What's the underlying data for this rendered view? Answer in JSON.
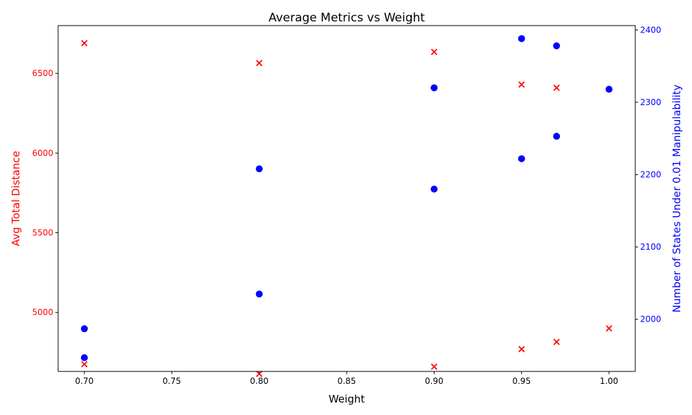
{
  "chart_data": {
    "type": "scatter",
    "title": "Average Metrics vs Weight",
    "xlabel": "Weight",
    "ylabel": "Avg Total Distance",
    "ylabel_right": "Number of States Under 0.01 Manipulability",
    "xlim": [
      0.685,
      1.015
    ],
    "ylim": [
      4630,
      6800
    ],
    "ylim_right": [
      1928,
      2406
    ],
    "x_ticks": [
      "0.70",
      "0.75",
      "0.80",
      "0.85",
      "0.90",
      "0.95",
      "1.00"
    ],
    "y_ticks": [
      "5000",
      "5500",
      "6000",
      "6500"
    ],
    "y_right_ticks": [
      "2000",
      "2100",
      "2200",
      "2300",
      "2400"
    ],
    "grid": false,
    "colors": {
      "left": "#ff0000",
      "right": "#0000ff"
    },
    "series": [
      {
        "axis": "left",
        "marker": "x",
        "color": "#ff0000",
        "points": [
          {
            "x": 0.7,
            "y": 6690
          },
          {
            "x": 0.7,
            "y": 4675
          },
          {
            "x": 0.8,
            "y": 6565
          },
          {
            "x": 0.8,
            "y": 4615
          },
          {
            "x": 0.9,
            "y": 6635
          },
          {
            "x": 0.9,
            "y": 4660
          },
          {
            "x": 0.95,
            "y": 6430
          },
          {
            "x": 0.95,
            "y": 4770
          },
          {
            "x": 0.97,
            "y": 6410
          },
          {
            "x": 0.97,
            "y": 4815
          },
          {
            "x": 1.0,
            "y": 4900
          }
        ]
      },
      {
        "axis": "right",
        "marker": "o",
        "color": "#0000ff",
        "points": [
          {
            "x": 0.7,
            "y": 1987
          },
          {
            "x": 0.7,
            "y": 1947
          },
          {
            "x": 0.8,
            "y": 2208
          },
          {
            "x": 0.8,
            "y": 2035
          },
          {
            "x": 0.9,
            "y": 2320
          },
          {
            "x": 0.9,
            "y": 2180
          },
          {
            "x": 0.95,
            "y": 2388
          },
          {
            "x": 0.95,
            "y": 2222
          },
          {
            "x": 0.97,
            "y": 2378
          },
          {
            "x": 0.97,
            "y": 2253
          },
          {
            "x": 1.0,
            "y": 2318
          }
        ]
      }
    ]
  }
}
